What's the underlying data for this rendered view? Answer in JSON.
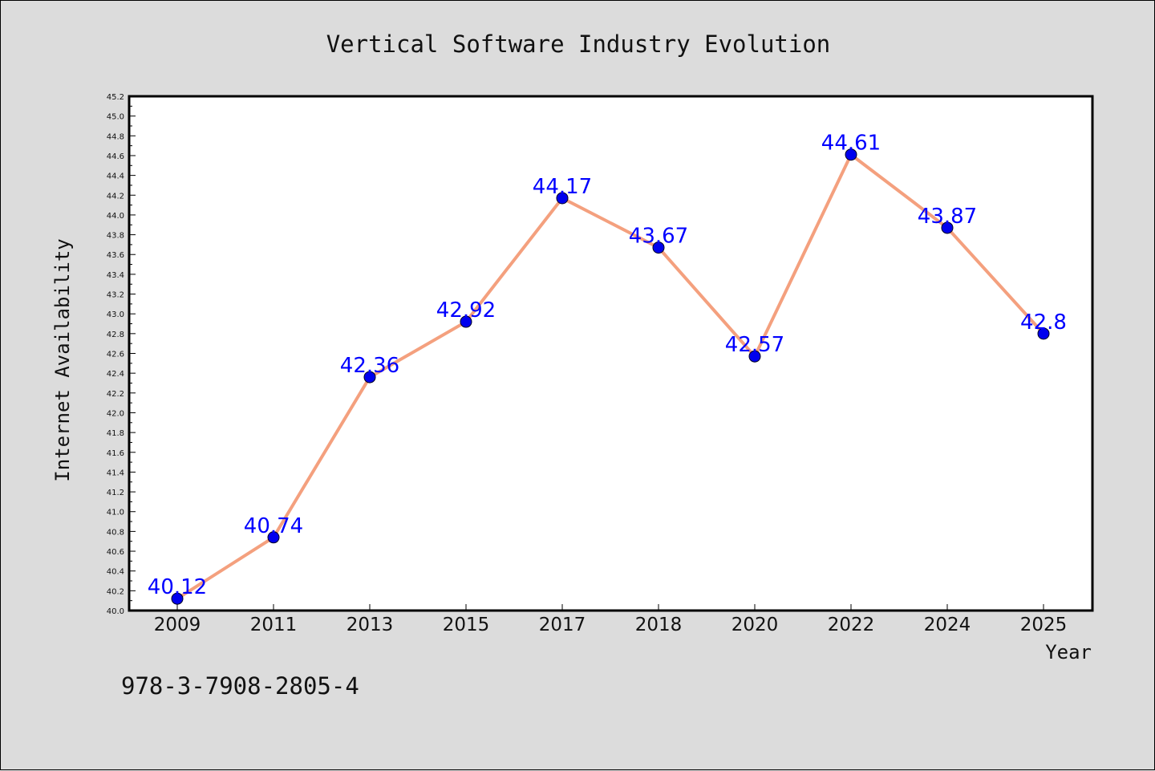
{
  "chart_data": {
    "type": "line",
    "title": "Vertical Software Industry Evolution",
    "xlabel": "Year",
    "ylabel": "Internet Availability",
    "categories": [
      "2009",
      "2011",
      "2013",
      "2015",
      "2017",
      "2018",
      "2020",
      "2022",
      "2024",
      "2025"
    ],
    "values": [
      40.12,
      40.74,
      42.36,
      42.92,
      44.17,
      43.67,
      42.57,
      44.61,
      43.87,
      42.8
    ],
    "data_labels": [
      "40.12",
      "40.74",
      "42.36",
      "42.92",
      "44.17",
      "43.67",
      "42.57",
      "44.61",
      "43.87",
      "42.8"
    ],
    "ylim": [
      40.0,
      45.2
    ],
    "yticks": [
      "40.0",
      "40.2",
      "40.4",
      "40.6",
      "40.8",
      "41.0",
      "41.2",
      "41.4",
      "41.6",
      "41.8",
      "42.0",
      "42.2",
      "42.4",
      "42.6",
      "42.8",
      "43.0",
      "43.2",
      "43.4",
      "43.6",
      "43.8",
      "44.0",
      "44.2",
      "44.4",
      "44.6",
      "44.8",
      "45.0",
      "45.2"
    ],
    "grid": false,
    "legend": "none",
    "line_color": "#f4a07e",
    "marker_color": "#0000ee",
    "label_color": "#0000ff"
  },
  "footnote": "978-3-7908-2805-4"
}
